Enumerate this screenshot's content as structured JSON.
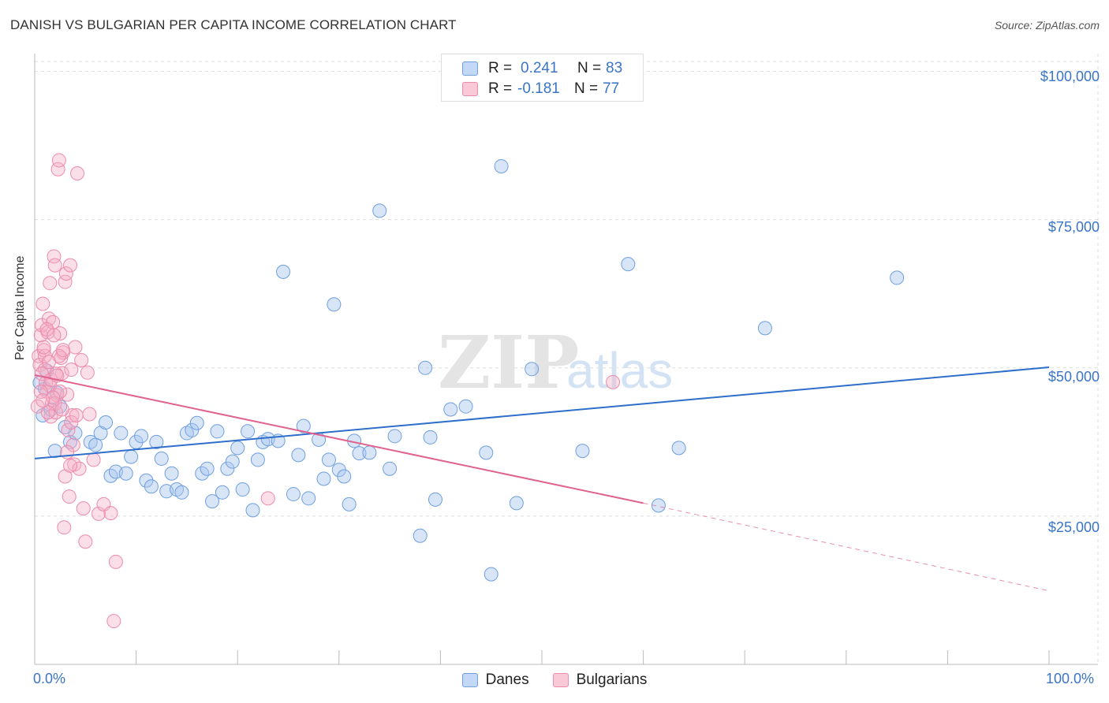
{
  "title": "DANISH VS BULGARIAN PER CAPITA INCOME CORRELATION CHART",
  "source": "Source: ZipAtlas.com",
  "watermark": {
    "zip": "ZIP",
    "atlas": "atlas"
  },
  "colors": {
    "danes": "#a9c6ee",
    "danes_line": "#2e6fcb",
    "bulgarians": "#f5afc6",
    "bulgarians_line": "#e0628f",
    "axis_text": "#3a74c8",
    "grid": "#dddddd"
  },
  "legend": {
    "rows": [
      {
        "r_label": "R =",
        "r_value": "0.241",
        "n_label": "N =",
        "n_value": "83"
      },
      {
        "r_label": "R =",
        "r_value": "-0.181",
        "n_label": "N =",
        "n_value": "77"
      }
    ],
    "bottom": [
      "Danes",
      "Bulgarians"
    ]
  },
  "chart_data": {
    "type": "scatter",
    "title": "DANISH VS BULGARIAN PER CAPITA INCOME CORRELATION CHART",
    "xlabel": "",
    "ylabel": "Per Capita Income",
    "x_tick_labels": [
      "0.0%",
      "100.0%"
    ],
    "y_tick_labels": [
      "$100,000",
      "$75,000",
      "$50,000",
      "$25,000"
    ],
    "y_ticks": [
      100000,
      75000,
      50000,
      25000
    ],
    "xlim": [
      0,
      100
    ],
    "ylim": [
      0,
      103000
    ],
    "grid": true,
    "legend_position": "top-center",
    "series": [
      {
        "name": "Danes",
        "r": 0.241,
        "n": 83,
        "trend": {
          "x0": 0,
          "y0": 34700,
          "x1": 100,
          "y1": 50100
        },
        "points": [
          [
            0.8,
            42000
          ],
          [
            1.2,
            49500
          ],
          [
            2.5,
            43500
          ],
          [
            3.5,
            37500
          ],
          [
            4.0,
            39000
          ],
          [
            5.5,
            37500
          ],
          [
            6.0,
            37000
          ],
          [
            6.5,
            39000
          ],
          [
            7.0,
            40800
          ],
          [
            7.5,
            31800
          ],
          [
            8.0,
            32500
          ],
          [
            8.5,
            39000
          ],
          [
            9.0,
            32200
          ],
          [
            9.5,
            35000
          ],
          [
            10.0,
            37500
          ],
          [
            10.5,
            38500
          ],
          [
            11.0,
            31000
          ],
          [
            11.5,
            30000
          ],
          [
            12.0,
            37500
          ],
          [
            12.5,
            34700
          ],
          [
            13.0,
            29200
          ],
          [
            13.5,
            32200
          ],
          [
            14.0,
            29500
          ],
          [
            14.5,
            29000
          ],
          [
            15.0,
            39000
          ],
          [
            15.5,
            39500
          ],
          [
            16.0,
            40700
          ],
          [
            16.5,
            32200
          ],
          [
            17.0,
            33000
          ],
          [
            17.5,
            27500
          ],
          [
            18.0,
            39300
          ],
          [
            18.5,
            29000
          ],
          [
            19.0,
            33000
          ],
          [
            19.5,
            34200
          ],
          [
            20.0,
            36500
          ],
          [
            20.5,
            29500
          ],
          [
            21.0,
            39300
          ],
          [
            21.5,
            26000
          ],
          [
            22.0,
            34500
          ],
          [
            22.5,
            37500
          ],
          [
            23.0,
            38000
          ],
          [
            24.0,
            37700
          ],
          [
            24.5,
            66200
          ],
          [
            25.5,
            28700
          ],
          [
            26.0,
            35300
          ],
          [
            26.5,
            40200
          ],
          [
            27.0,
            28000
          ],
          [
            28.0,
            37900
          ],
          [
            28.5,
            31300
          ],
          [
            29.0,
            34500
          ],
          [
            29.5,
            60700
          ],
          [
            30.0,
            32800
          ],
          [
            30.5,
            31700
          ],
          [
            31.0,
            27000
          ],
          [
            31.5,
            37700
          ],
          [
            32.0,
            35600
          ],
          [
            33.0,
            35700
          ],
          [
            34.0,
            76500
          ],
          [
            35.0,
            33000
          ],
          [
            35.5,
            38500
          ],
          [
            38.0,
            21700
          ],
          [
            38.5,
            50000
          ],
          [
            39.0,
            38300
          ],
          [
            39.5,
            27800
          ],
          [
            41.0,
            43000
          ],
          [
            42.5,
            43500
          ],
          [
            44.5,
            35700
          ],
          [
            45.0,
            15200
          ],
          [
            46.0,
            84000
          ],
          [
            47.5,
            27200
          ],
          [
            49.0,
            49800
          ],
          [
            54.0,
            36000
          ],
          [
            58.5,
            67500
          ],
          [
            61.5,
            26800
          ],
          [
            63.5,
            36500
          ],
          [
            72.0,
            56700
          ],
          [
            85.0,
            65200
          ],
          [
            1.6,
            43000
          ],
          [
            2.2,
            45800
          ],
          [
            3.0,
            40000
          ],
          [
            1.0,
            46500
          ],
          [
            2.0,
            36000
          ],
          [
            0.5,
            47500
          ]
        ]
      },
      {
        "name": "Bulgarians",
        "r": -0.181,
        "n": 77,
        "trend": {
          "x0": 0,
          "y0": 48800,
          "x1": 60,
          "y1": 27200,
          "dash_x1": 100,
          "dash_y1": 12400
        },
        "points": [
          [
            0.3,
            43500
          ],
          [
            0.4,
            52000
          ],
          [
            0.5,
            50500
          ],
          [
            0.6,
            55500
          ],
          [
            0.7,
            57200
          ],
          [
            0.8,
            60800
          ],
          [
            0.9,
            53000
          ],
          [
            1.0,
            49700
          ],
          [
            1.1,
            47500
          ],
          [
            1.2,
            46000
          ],
          [
            1.3,
            56000
          ],
          [
            1.4,
            58300
          ],
          [
            1.5,
            64300
          ],
          [
            1.6,
            41800
          ],
          [
            1.7,
            44000
          ],
          [
            1.8,
            57700
          ],
          [
            1.9,
            68800
          ],
          [
            2.0,
            67300
          ],
          [
            2.1,
            42500
          ],
          [
            2.2,
            45400
          ],
          [
            2.3,
            83500
          ],
          [
            2.4,
            85000
          ],
          [
            2.5,
            55800
          ],
          [
            2.6,
            51700
          ],
          [
            2.7,
            49100
          ],
          [
            2.8,
            52600
          ],
          [
            2.9,
            23100
          ],
          [
            3.0,
            64500
          ],
          [
            3.1,
            65900
          ],
          [
            3.2,
            45500
          ],
          [
            3.3,
            39500
          ],
          [
            3.4,
            28300
          ],
          [
            3.5,
            67300
          ],
          [
            3.6,
            49700
          ],
          [
            3.7,
            42000
          ],
          [
            3.8,
            37000
          ],
          [
            3.9,
            33700
          ],
          [
            4.0,
            53500
          ],
          [
            4.2,
            82800
          ],
          [
            4.4,
            33000
          ],
          [
            4.6,
            51300
          ],
          [
            4.8,
            26300
          ],
          [
            5.0,
            20700
          ],
          [
            5.2,
            49200
          ],
          [
            5.4,
            42200
          ],
          [
            5.8,
            34500
          ],
          [
            6.3,
            25400
          ],
          [
            6.8,
            27000
          ],
          [
            7.5,
            25500
          ],
          [
            7.8,
            7300
          ],
          [
            8.0,
            17300
          ],
          [
            23.0,
            28000
          ],
          [
            57.0,
            47600
          ],
          [
            1.5,
            47000
          ],
          [
            2.0,
            44000
          ],
          [
            2.5,
            46000
          ],
          [
            3.0,
            31700
          ],
          [
            1.0,
            52000
          ],
          [
            0.7,
            49000
          ],
          [
            1.8,
            45000
          ],
          [
            2.7,
            43000
          ],
          [
            3.5,
            33500
          ],
          [
            1.2,
            56500
          ],
          [
            0.9,
            53500
          ],
          [
            2.4,
            52000
          ],
          [
            1.6,
            48000
          ],
          [
            0.6,
            46000
          ],
          [
            3.2,
            35800
          ],
          [
            1.3,
            42500
          ],
          [
            2.1,
            49000
          ],
          [
            1.9,
            55500
          ],
          [
            0.8,
            44500
          ],
          [
            2.8,
            53000
          ],
          [
            3.6,
            40800
          ],
          [
            4.1,
            42000
          ],
          [
            2.2,
            48700
          ],
          [
            1.4,
            51000
          ]
        ]
      }
    ]
  }
}
